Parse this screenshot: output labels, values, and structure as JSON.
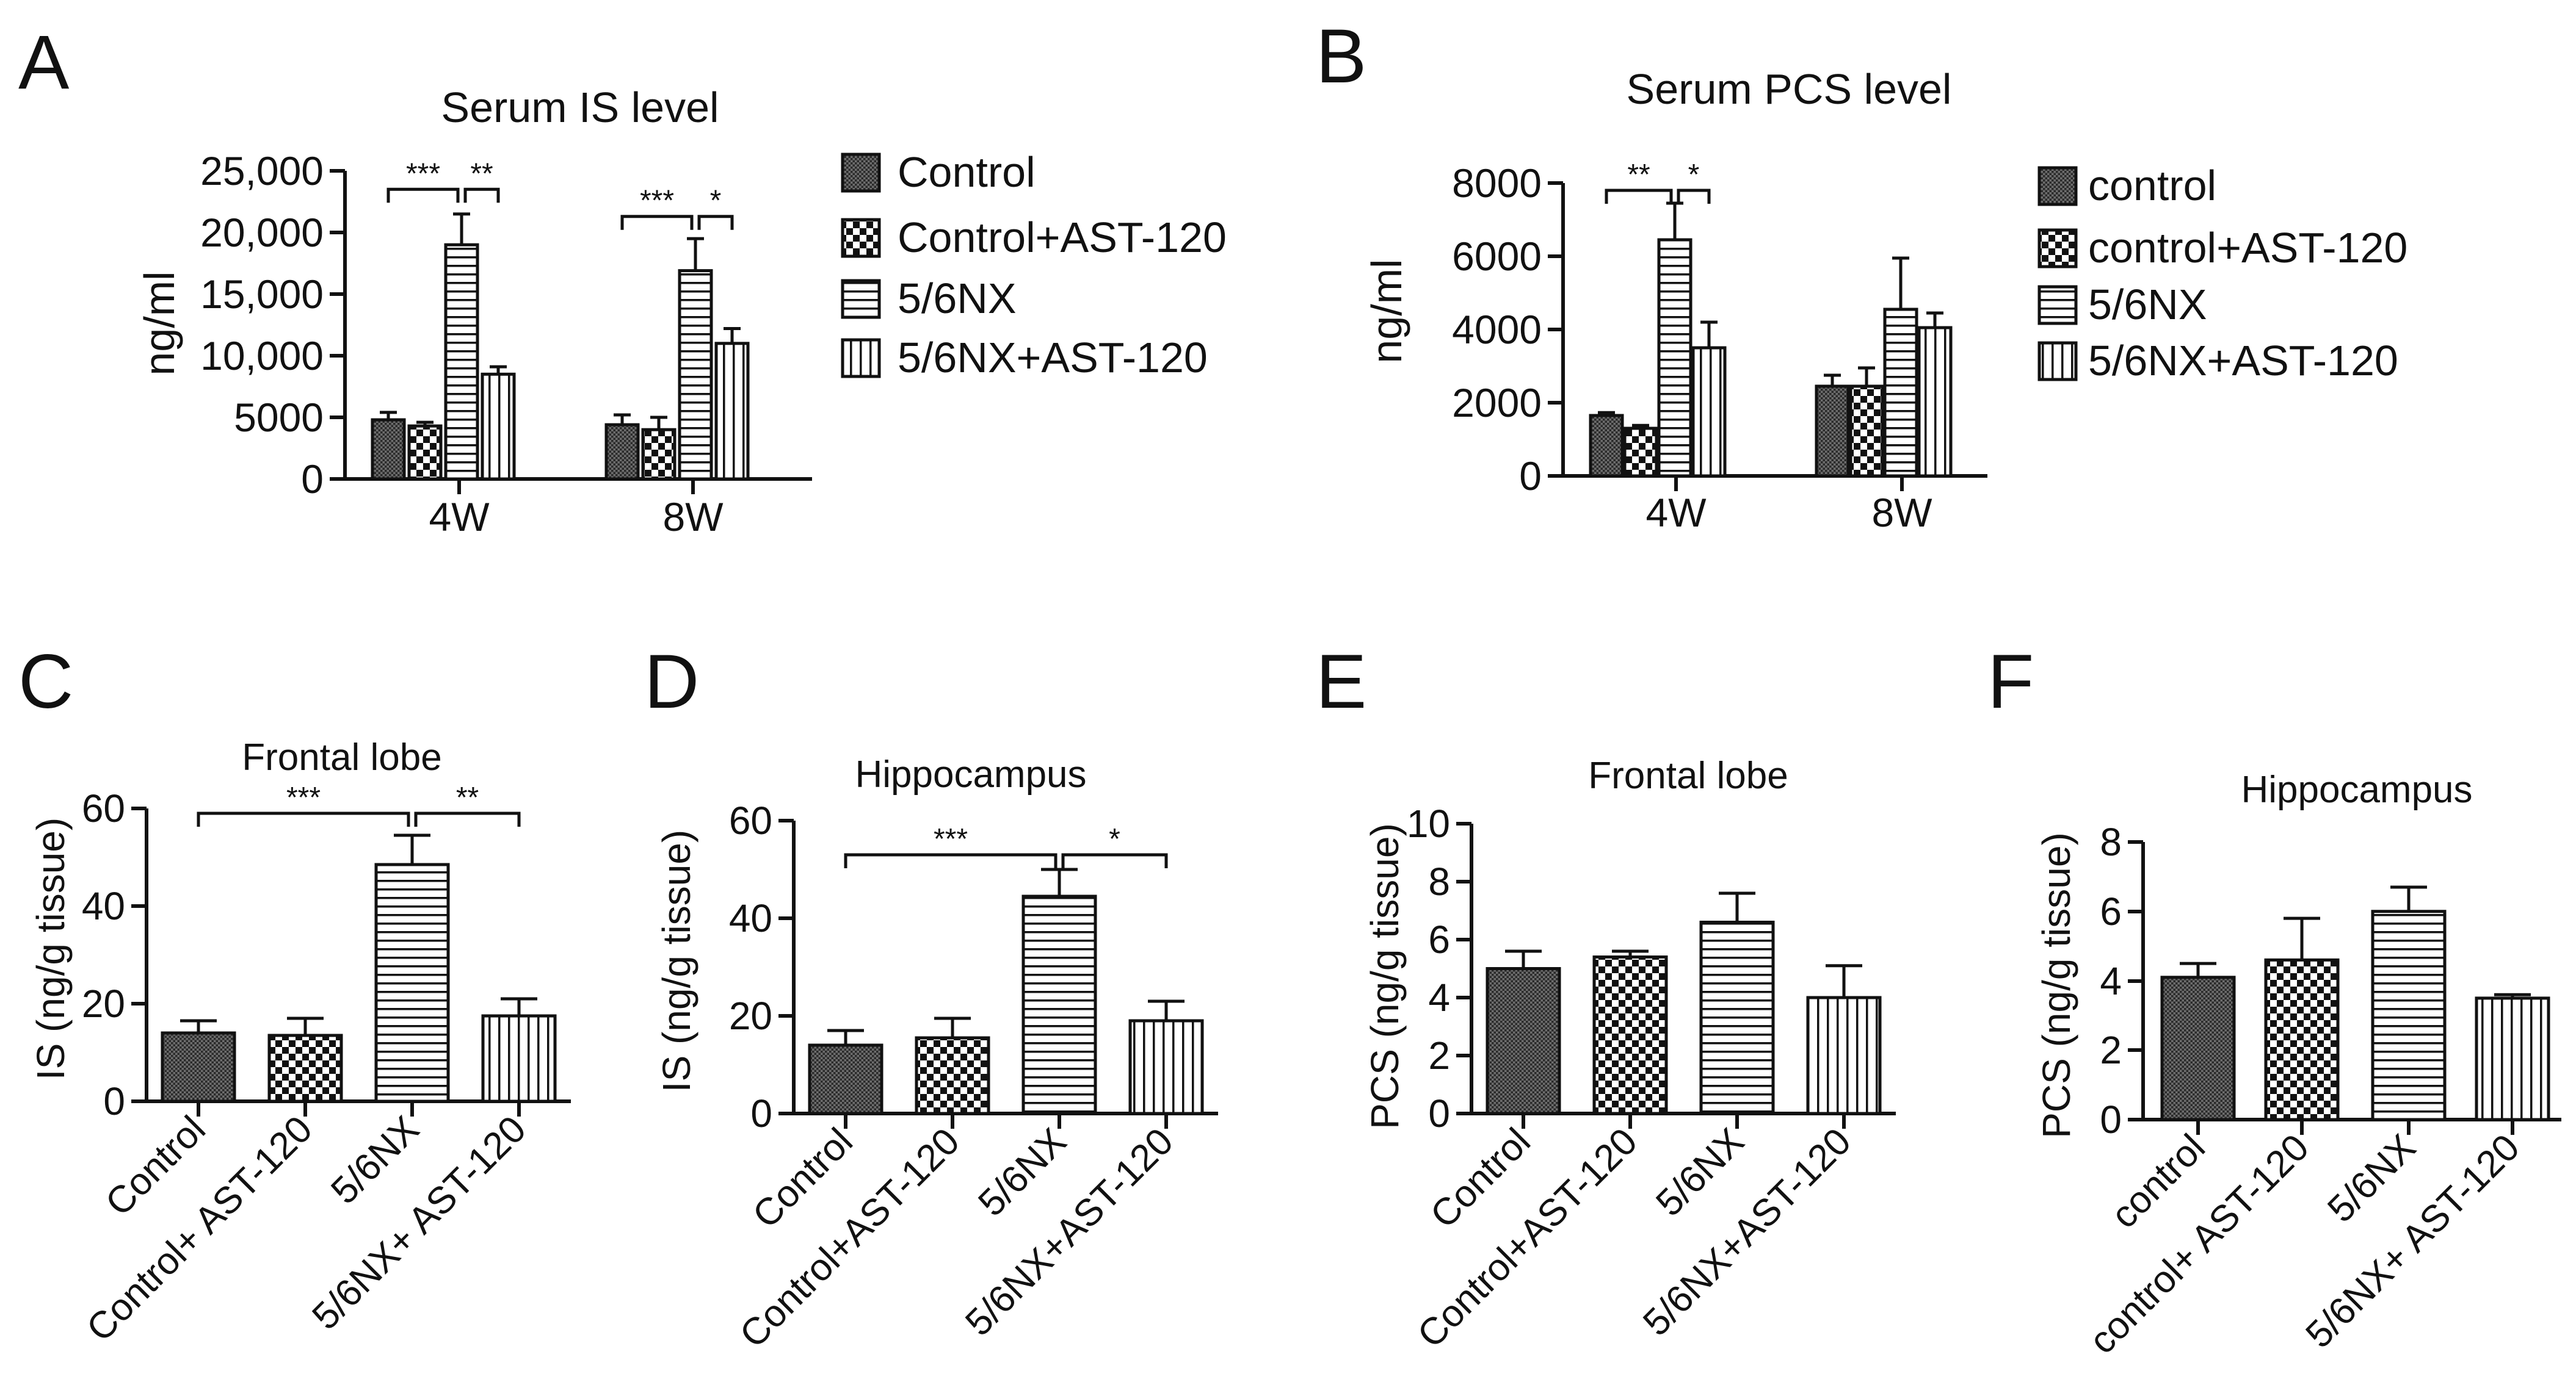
{
  "chart_data": [
    {
      "id": "A",
      "panel_letter": "A",
      "type": "bar",
      "title": "Serum IS level",
      "ylabel": "ng/ml",
      "ylim": [
        0,
        25000
      ],
      "y_ticks": [
        "0",
        "5000",
        "10,000",
        "15,000",
        "20,000",
        "25,000"
      ],
      "tick_values": [
        0,
        5000,
        10000,
        15000,
        20000,
        25000
      ],
      "categories": [
        "4W",
        "8W"
      ],
      "series": [
        {
          "name": "Control",
          "pattern": "dense",
          "values": [
            4800,
            4400
          ],
          "errors": [
            600,
            800
          ]
        },
        {
          "name": "Control+AST-120",
          "pattern": "checker",
          "values": [
            4300,
            4000
          ],
          "errors": [
            300,
            1000
          ]
        },
        {
          "name": "5/6NX",
          "pattern": "hlines",
          "values": [
            19000,
            16900
          ],
          "errors": [
            2500,
            2600
          ]
        },
        {
          "name": "5/6NX+AST-120",
          "pattern": "vlines",
          "values": [
            8500,
            11000
          ],
          "errors": [
            600,
            1200
          ]
        }
      ],
      "significance": [
        {
          "group": 0,
          "from": 0,
          "to": 2,
          "y": 23500,
          "label": "***"
        },
        {
          "group": 0,
          "from": 2,
          "to": 3,
          "y": 23500,
          "label": "**"
        },
        {
          "group": 1,
          "from": 0,
          "to": 2,
          "y": 21300,
          "label": "***"
        },
        {
          "group": 1,
          "from": 2,
          "to": 3,
          "y": 21300,
          "label": "*"
        }
      ]
    },
    {
      "id": "B",
      "panel_letter": "B",
      "type": "bar",
      "title": "Serum PCS level",
      "ylabel": "ng/ml",
      "ylim": [
        0,
        8000
      ],
      "y_ticks": [
        "0",
        "2000",
        "4000",
        "6000",
        "8000"
      ],
      "tick_values": [
        0,
        2000,
        4000,
        6000,
        8000
      ],
      "categories": [
        "4W",
        "8W"
      ],
      "series": [
        {
          "name": "control",
          "pattern": "dense",
          "values": [
            1650,
            2450
          ],
          "errors": [
            80,
            300
          ]
        },
        {
          "name": "control+AST-120",
          "pattern": "checker",
          "values": [
            1300,
            2450
          ],
          "errors": [
            80,
            500
          ]
        },
        {
          "name": "5/6NX",
          "pattern": "hlines",
          "values": [
            6450,
            4550
          ],
          "errors": [
            1000,
            1400
          ]
        },
        {
          "name": "5/6NX+AST-120",
          "pattern": "vlines",
          "values": [
            3500,
            4050
          ],
          "errors": [
            700,
            400
          ]
        }
      ],
      "significance": [
        {
          "group": 0,
          "from": 0,
          "to": 2,
          "y": 7800,
          "label": "**"
        },
        {
          "group": 0,
          "from": 2,
          "to": 3,
          "y": 7800,
          "label": "*"
        }
      ]
    },
    {
      "id": "C",
      "panel_letter": "C",
      "type": "bar",
      "title": "Frontal lobe",
      "ylabel": "IS (ng/g tissue)",
      "ylim": [
        0,
        60
      ],
      "y_ticks": [
        "0",
        "20",
        "40",
        "60"
      ],
      "tick_values": [
        0,
        20,
        40,
        60
      ],
      "categories": [
        "Control",
        "Control+ AST-120",
        "5/6NX",
        "5/6NX+ AST-120"
      ],
      "patterns": [
        "dense",
        "checker",
        "hlines",
        "vlines"
      ],
      "values": [
        14,
        13.5,
        48.5,
        17.5
      ],
      "errors": [
        2.5,
        3.5,
        6,
        3.5
      ],
      "significance": [
        {
          "from": 0,
          "to": 2,
          "y": 59,
          "label": "***"
        },
        {
          "from": 2,
          "to": 3,
          "y": 59,
          "label": "**"
        }
      ]
    },
    {
      "id": "D",
      "panel_letter": "D",
      "type": "bar",
      "title": "Hippocampus",
      "ylabel": "IS (ng/g tissue)",
      "ylim": [
        0,
        60
      ],
      "y_ticks": [
        "0",
        "20",
        "40",
        "60"
      ],
      "tick_values": [
        0,
        20,
        40,
        60
      ],
      "categories": [
        "Control",
        "Control+AST-120",
        "5/6NX",
        "5/6NX+AST-120"
      ],
      "patterns": [
        "dense",
        "checker",
        "hlines",
        "vlines"
      ],
      "values": [
        14,
        15.5,
        44.5,
        19
      ],
      "errors": [
        3,
        4,
        5.5,
        4
      ],
      "significance": [
        {
          "from": 0,
          "to": 2,
          "y": 53,
          "label": "***"
        },
        {
          "from": 2,
          "to": 3,
          "y": 53,
          "label": "*"
        }
      ]
    },
    {
      "id": "E",
      "panel_letter": "E",
      "type": "bar",
      "title": "Frontal lobe",
      "ylabel": "PCS (ng/g tissue)",
      "ylim": [
        0,
        10
      ],
      "y_ticks": [
        "0",
        "2",
        "4",
        "6",
        "8",
        "10"
      ],
      "tick_values": [
        0,
        2,
        4,
        6,
        8,
        10
      ],
      "categories": [
        "Control",
        "Control+AST-120",
        "5/6NX",
        "5/6NX+AST-120"
      ],
      "patterns": [
        "dense",
        "checker",
        "hlines",
        "vlines"
      ],
      "values": [
        5,
        5.4,
        6.6,
        4
      ],
      "errors": [
        0.6,
        0.2,
        1.0,
        1.1
      ],
      "significance": []
    },
    {
      "id": "F",
      "panel_letter": "F",
      "type": "bar",
      "title": "Hippocampus",
      "ylabel": "PCS (ng/g tissue)",
      "ylim": [
        0,
        8
      ],
      "y_ticks": [
        "0",
        "2",
        "4",
        "6",
        "8"
      ],
      "tick_values": [
        0,
        2,
        4,
        6,
        8
      ],
      "categories": [
        "control",
        "control+ AST-120",
        "5/6NX",
        "5/6NX+ AST-120"
      ],
      "patterns": [
        "dense",
        "checker",
        "hlines",
        "vlines"
      ],
      "values": [
        4.1,
        4.6,
        6.0,
        3.5
      ],
      "errors": [
        0.4,
        1.2,
        0.7,
        0.1
      ],
      "significance": []
    }
  ]
}
